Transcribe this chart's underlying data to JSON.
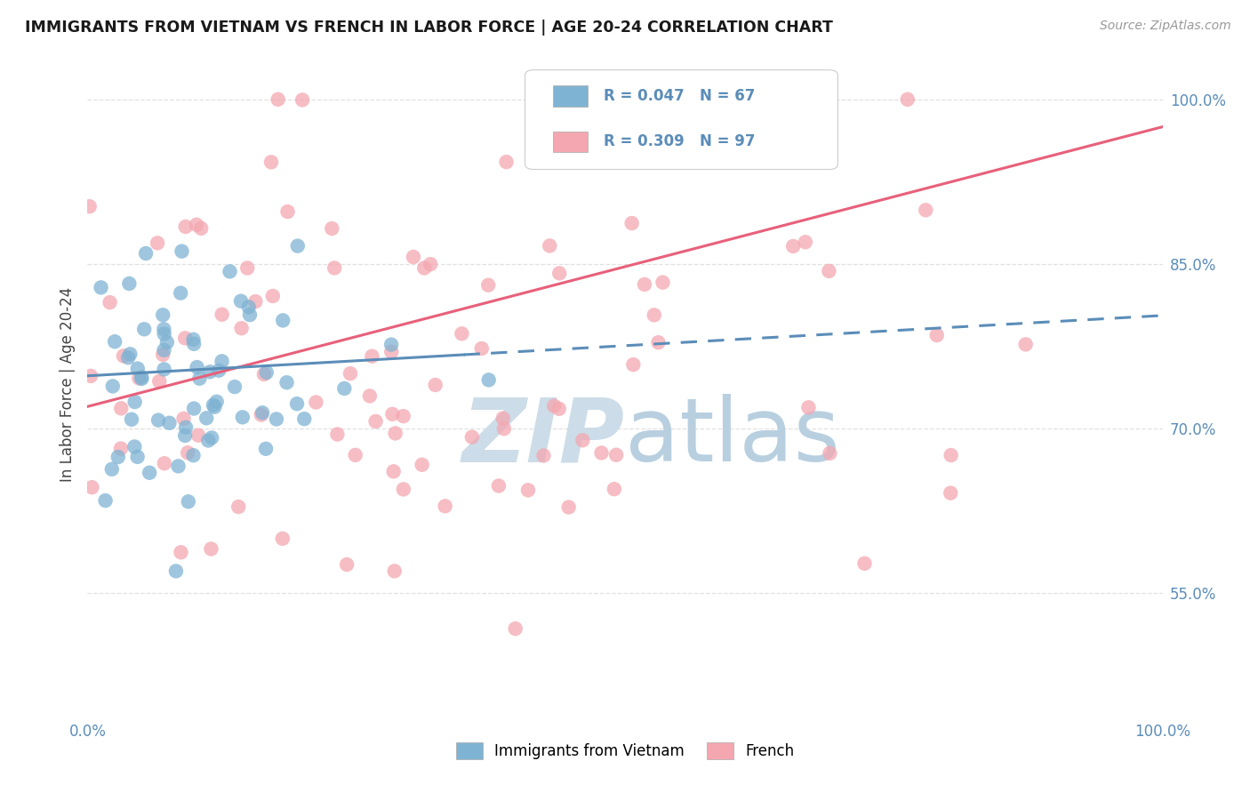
{
  "title": "IMMIGRANTS FROM VIETNAM VS FRENCH IN LABOR FORCE | AGE 20-24 CORRELATION CHART",
  "source": "Source: ZipAtlas.com",
  "ylabel": "In Labor Force | Age 20-24",
  "legend_label_blue": "Immigrants from Vietnam",
  "legend_label_pink": "French",
  "R_blue": 0.047,
  "N_blue": 67,
  "R_pink": 0.309,
  "N_pink": 97,
  "color_blue": "#7fb3d3",
  "color_pink": "#f4a7b0",
  "color_blue_line": "#5b8db8",
  "color_pink_line": "#e8607a",
  "ytick_vals": [
    0.55,
    0.7,
    0.85,
    1.0
  ],
  "ytick_labels": [
    "55.0%",
    "70.0%",
    "85.0%",
    "100.0%"
  ],
  "watermark_zip": "ZIP",
  "watermark_atlas": "atlas",
  "watermark_color_zip": "#c8d8e8",
  "watermark_color_atlas": "#b0c8e0",
  "background_color": "#ffffff",
  "grid_color": "#e0e0e0",
  "axis_label_color": "#5b8db8",
  "title_color": "#1a1a1a"
}
